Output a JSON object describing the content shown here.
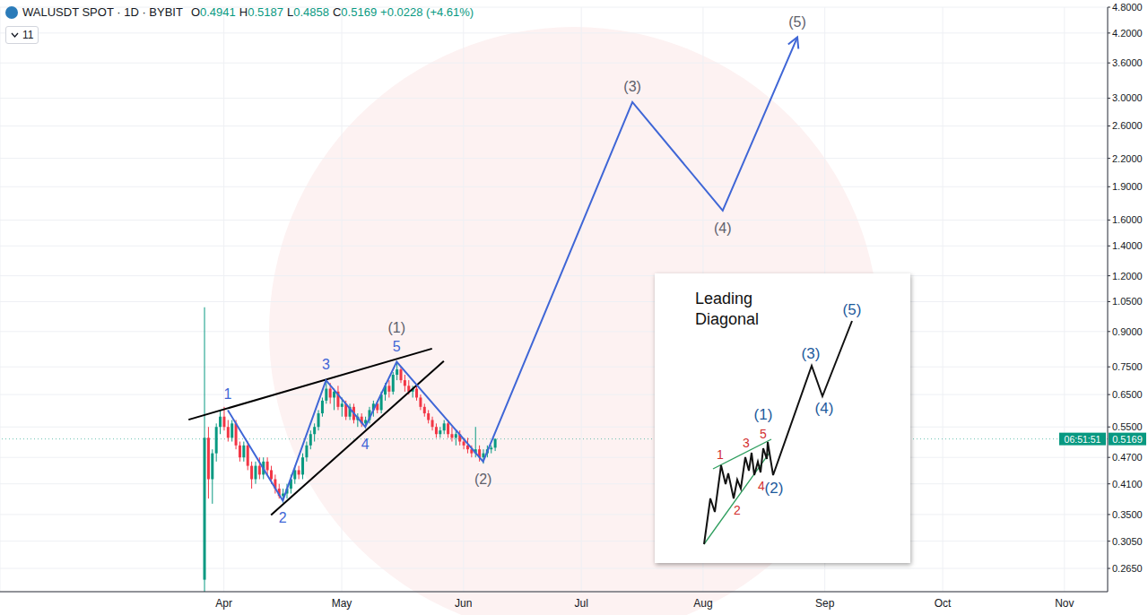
{
  "chart_data": {
    "type": "candlestick",
    "title": "WALUSDT SPOT · 1D · BYBIT",
    "ohlc_legend": [
      {
        "key": "O",
        "value": "0.4941"
      },
      {
        "key": "H",
        "value": "0.5187"
      },
      {
        "key": "L",
        "value": "0.4858"
      },
      {
        "key": "C",
        "value": "0.5169"
      }
    ],
    "change": "+0.0228 (+4.61%)",
    "indicators": "11",
    "x": [
      -5,
      -4,
      -3,
      -2,
      -1,
      0,
      1,
      2,
      3,
      4,
      5,
      6,
      7,
      8,
      9,
      10,
      11,
      12,
      13,
      14,
      15,
      16,
      17,
      18,
      19,
      20,
      21,
      22,
      23,
      24,
      25,
      26,
      27,
      28,
      29,
      30,
      31,
      32,
      33,
      34,
      35,
      36,
      37,
      38,
      39,
      40,
      41,
      42,
      43,
      44,
      45,
      46,
      47,
      48,
      49,
      50,
      51,
      52,
      53,
      54,
      55,
      56,
      57,
      58,
      59,
      60,
      61,
      62,
      63,
      64,
      65,
      66,
      67,
      68,
      69
    ],
    "open": [
      0.25,
      0.52,
      0.42,
      0.48,
      0.55,
      0.58,
      0.55,
      0.52,
      0.56,
      0.5,
      0.47,
      0.5,
      0.45,
      0.42,
      0.45,
      0.43,
      0.46,
      0.44,
      0.42,
      0.4,
      0.385,
      0.39,
      0.4,
      0.42,
      0.44,
      0.43,
      0.47,
      0.5,
      0.53,
      0.55,
      0.59,
      0.63,
      0.67,
      0.64,
      0.66,
      0.61,
      0.62,
      0.58,
      0.61,
      0.57,
      0.58,
      0.56,
      0.57,
      0.6,
      0.62,
      0.6,
      0.65,
      0.68,
      0.66,
      0.72,
      0.74,
      0.7,
      0.68,
      0.66,
      0.67,
      0.64,
      0.61,
      0.59,
      0.57,
      0.55,
      0.53,
      0.54,
      0.56,
      0.53,
      0.52,
      0.53,
      0.51,
      0.5,
      0.49,
      0.48,
      0.49,
      0.47,
      0.48,
      0.49,
      0.4941
    ],
    "high": [
      1.02,
      0.55,
      0.49,
      0.56,
      0.6,
      0.61,
      0.57,
      0.57,
      0.57,
      0.51,
      0.51,
      0.51,
      0.46,
      0.46,
      0.47,
      0.47,
      0.47,
      0.45,
      0.43,
      0.41,
      0.4,
      0.41,
      0.43,
      0.45,
      0.45,
      0.48,
      0.51,
      0.54,
      0.56,
      0.6,
      0.64,
      0.7,
      0.69,
      0.67,
      0.68,
      0.64,
      0.63,
      0.62,
      0.62,
      0.59,
      0.59,
      0.58,
      0.61,
      0.63,
      0.63,
      0.66,
      0.69,
      0.7,
      0.73,
      0.77,
      0.75,
      0.72,
      0.7,
      0.68,
      0.68,
      0.65,
      0.62,
      0.6,
      0.58,
      0.56,
      0.55,
      0.57,
      0.57,
      0.55,
      0.54,
      0.54,
      0.52,
      0.52,
      0.5,
      0.55,
      0.5,
      0.49,
      0.5,
      0.5,
      0.5187
    ],
    "low": [
      0.23,
      0.38,
      0.37,
      0.46,
      0.53,
      0.54,
      0.51,
      0.51,
      0.49,
      0.46,
      0.46,
      0.44,
      0.4,
      0.41,
      0.42,
      0.42,
      0.43,
      0.41,
      0.39,
      0.38,
      0.372,
      0.38,
      0.39,
      0.41,
      0.42,
      0.42,
      0.46,
      0.49,
      0.51,
      0.54,
      0.58,
      0.62,
      0.62,
      0.6,
      0.6,
      0.58,
      0.57,
      0.57,
      0.56,
      0.55,
      0.55,
      0.545,
      0.56,
      0.58,
      0.59,
      0.59,
      0.63,
      0.64,
      0.65,
      0.7,
      0.69,
      0.66,
      0.65,
      0.64,
      0.63,
      0.6,
      0.58,
      0.56,
      0.54,
      0.52,
      0.52,
      0.53,
      0.52,
      0.51,
      0.5,
      0.5,
      0.49,
      0.48,
      0.47,
      0.47,
      0.46,
      0.455,
      0.47,
      0.48,
      0.4858
    ],
    "close": [
      0.52,
      0.42,
      0.48,
      0.55,
      0.58,
      0.55,
      0.52,
      0.56,
      0.5,
      0.47,
      0.5,
      0.45,
      0.42,
      0.45,
      0.43,
      0.46,
      0.44,
      0.42,
      0.4,
      0.385,
      0.39,
      0.4,
      0.42,
      0.44,
      0.43,
      0.47,
      0.5,
      0.53,
      0.55,
      0.59,
      0.63,
      0.67,
      0.64,
      0.66,
      0.61,
      0.62,
      0.58,
      0.61,
      0.57,
      0.58,
      0.56,
      0.57,
      0.6,
      0.62,
      0.6,
      0.65,
      0.68,
      0.66,
      0.72,
      0.74,
      0.7,
      0.68,
      0.66,
      0.67,
      0.64,
      0.61,
      0.59,
      0.57,
      0.55,
      0.53,
      0.54,
      0.56,
      0.53,
      0.52,
      0.53,
      0.51,
      0.5,
      0.49,
      0.48,
      0.49,
      0.47,
      0.48,
      0.49,
      0.4941,
      0.5169
    ],
    "xlim": [
      -57,
      225
    ],
    "xticks": [
      {
        "value": 0,
        "label": "Apr"
      },
      {
        "value": 30,
        "label": "May"
      },
      {
        "value": 61,
        "label": "Jun"
      },
      {
        "value": 91,
        "label": "Jul"
      },
      {
        "value": 122,
        "label": "Aug"
      },
      {
        "value": 153,
        "label": "Sep"
      },
      {
        "value": 183,
        "label": "Oct"
      },
      {
        "value": 214,
        "label": "Nov"
      }
    ],
    "ylim": [
      0.235,
      4.8
    ],
    "yticks": [
      {
        "value": 0.265,
        "label": "0.2650"
      },
      {
        "value": 0.305,
        "label": "0.3050"
      },
      {
        "value": 0.35,
        "label": "0.3500"
      },
      {
        "value": 0.41,
        "label": "0.4100"
      },
      {
        "value": 0.47,
        "label": "0.4700"
      },
      {
        "value": 0.55,
        "label": "0.5500"
      },
      {
        "value": 0.65,
        "label": "0.6500"
      },
      {
        "value": 0.75,
        "label": "0.7500"
      },
      {
        "value": 0.9,
        "label": "0.9000"
      },
      {
        "value": 1.05,
        "label": "1.0500"
      },
      {
        "value": 1.2,
        "label": "1.2000"
      },
      {
        "value": 1.4,
        "label": "1.4000"
      },
      {
        "value": 1.6,
        "label": "1.6000"
      },
      {
        "value": 1.9,
        "label": "1.9000"
      },
      {
        "value": 2.2,
        "label": "2.2000"
      },
      {
        "value": 2.6,
        "label": "2.6000"
      },
      {
        "value": 3,
        "label": "3.0000"
      },
      {
        "value": 3.6,
        "label": "3.6000"
      },
      {
        "value": 4.2,
        "label": "4.2000"
      },
      {
        "value": 4.8,
        "label": "4.8000"
      }
    ],
    "log": "y",
    "grid": true,
    "waves": {
      "color": "#3f66d6",
      "x": [
        1,
        15,
        26,
        36,
        44,
        66,
        104,
        127,
        146
      ],
      "values": [
        0.6,
        0.376,
        0.7,
        0.55,
        0.77,
        0.46,
        2.94,
        1.68,
        4.11
      ],
      "labels": [
        [
          "1"
        ],
        [
          "2"
        ],
        [
          "3"
        ],
        [
          "4"
        ],
        [
          "(1)",
          "5"
        ],
        [
          "(2)"
        ],
        [
          "(3)"
        ],
        [
          "(4)"
        ],
        [
          "(5)"
        ]
      ]
    },
    "trendlines": [
      {
        "color": "#000000",
        "x": [
          -9,
          53
        ],
        "values": [
          0.571,
          0.824
        ]
      },
      {
        "color": "#000000",
        "x": [
          12,
          56
        ],
        "values": [
          0.349,
          0.773
        ]
      }
    ],
    "last_price": {
      "value": 0.5169,
      "countdown": "06:51:51",
      "color": "#089981"
    }
  },
  "inset": {
    "title": "Leading Diagonal",
    "labels": [
      "1",
      "2",
      "3",
      "4",
      "5",
      "(1)",
      "(2)",
      "(3)",
      "(4)",
      "(5)"
    ]
  }
}
